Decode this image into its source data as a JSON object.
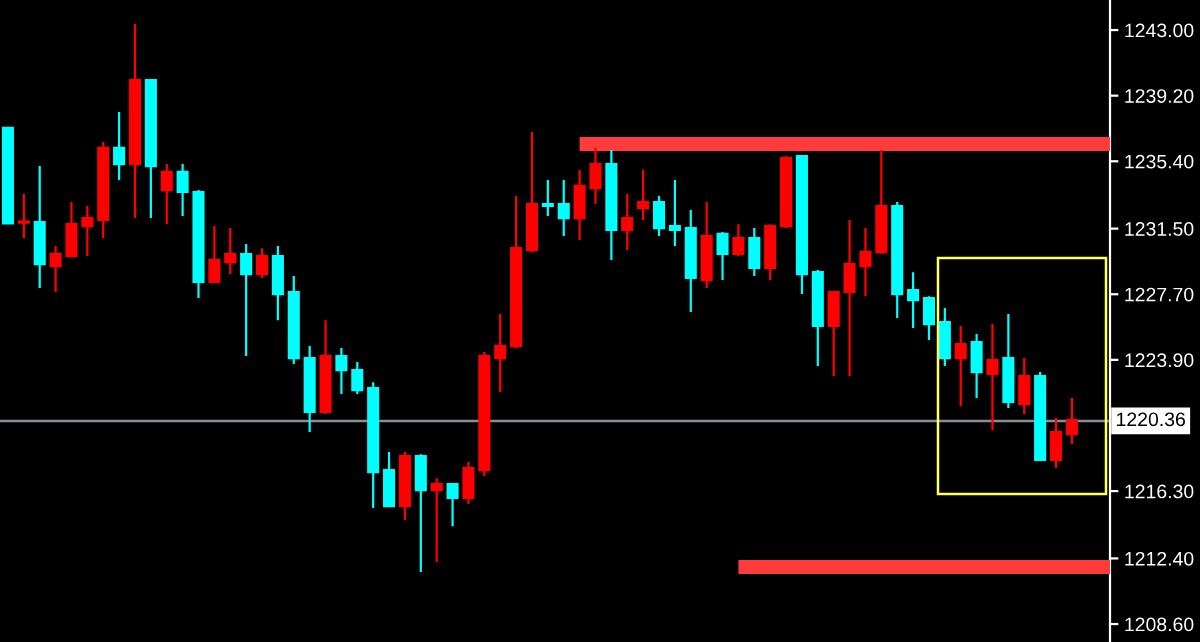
{
  "chart_data": {
    "type": "candlestick",
    "categories": [
      null,
      null,
      null,
      null,
      null,
      null,
      null,
      null,
      null,
      null,
      null,
      null,
      null,
      null,
      null,
      null,
      null,
      null,
      null,
      null,
      null,
      null,
      null,
      null,
      null,
      null,
      null,
      null,
      null,
      null,
      null,
      null,
      null,
      null,
      null,
      null,
      null,
      null,
      null,
      null,
      null,
      null,
      null,
      null,
      null,
      null,
      null,
      null,
      null,
      null,
      null,
      null,
      null,
      null,
      null,
      null,
      null,
      null,
      null,
      null,
      null,
      null,
      null,
      null,
      null,
      null,
      null,
      null
    ],
    "ylim": [
      1207.56,
      1244.74
    ],
    "yticks": [
      {
        "value": 1243.0,
        "label": "1243.00"
      },
      {
        "value": 1239.2,
        "label": "1239.20"
      },
      {
        "value": 1235.4,
        "label": "1235.40"
      },
      {
        "value": 1231.5,
        "label": "1231.50"
      },
      {
        "value": 1227.7,
        "label": "1227.70"
      },
      {
        "value": 1223.9,
        "label": "1223.90"
      },
      {
        "value": 1216.3,
        "label": "1216.30"
      },
      {
        "value": 1212.4,
        "label": "1212.40"
      },
      {
        "value": 1208.6,
        "label": "1208.60"
      }
    ],
    "tick_labels": "y",
    "grid": false,
    "legend": false,
    "ohlc": [
      [
        1237.33,
        1237.33,
        1231.8,
        1231.8
      ],
      [
        1231.84,
        1233.5,
        1230.95,
        1231.9
      ],
      [
        1231.88,
        1235.12,
        1228.06,
        1229.45
      ],
      [
        1229.33,
        1230.49,
        1227.83,
        1230.03
      ],
      [
        1229.91,
        1233.04,
        1229.91,
        1231.76
      ],
      [
        1231.65,
        1232.81,
        1229.91,
        1232.11
      ],
      [
        1232.0,
        1236.51,
        1230.95,
        1236.17
      ],
      [
        1236.17,
        1238.25,
        1234.31,
        1235.24
      ],
      [
        1235.24,
        1243.35,
        1232.11,
        1240.1
      ],
      [
        1240.1,
        1240.1,
        1232.11,
        1235.12
      ],
      [
        1233.73,
        1235.24,
        1231.76,
        1234.78
      ],
      [
        1234.78,
        1235.24,
        1232.23,
        1233.62
      ],
      [
        1233.62,
        1233.73,
        1227.48,
        1228.41
      ],
      [
        1228.41,
        1231.65,
        1228.41,
        1229.68
      ],
      [
        1229.56,
        1231.53,
        1228.87,
        1230.03
      ],
      [
        1230.03,
        1230.61,
        1224.12,
        1228.87
      ],
      [
        1228.87,
        1230.37,
        1228.64,
        1229.91
      ],
      [
        1229.91,
        1230.49,
        1226.2,
        1227.71
      ],
      [
        1227.83,
        1228.75,
        1223.66,
        1224.0
      ],
      [
        1224.0,
        1224.7,
        1219.72,
        1220.88
      ],
      [
        1220.88,
        1226.2,
        1220.76,
        1224.12
      ],
      [
        1224.12,
        1224.58,
        1221.92,
        1223.31
      ],
      [
        1223.31,
        1223.77,
        1221.92,
        1222.15
      ],
      [
        1222.27,
        1222.61,
        1215.32,
        1217.4
      ],
      [
        1217.52,
        1218.56,
        1215.43,
        1215.43
      ],
      [
        1215.43,
        1218.56,
        1214.62,
        1218.33
      ],
      [
        1218.33,
        1218.44,
        1211.61,
        1216.36
      ],
      [
        1216.36,
        1217.05,
        1212.19,
        1216.71
      ],
      [
        1216.71,
        1216.71,
        1214.27,
        1215.9
      ],
      [
        1215.9,
        1217.98,
        1215.55,
        1217.63
      ],
      [
        1217.52,
        1224.35,
        1217.17,
        1224.12
      ],
      [
        1224.0,
        1226.55,
        1222.03,
        1224.7
      ],
      [
        1224.7,
        1233.39,
        1224.58,
        1230.37
      ],
      [
        1230.26,
        1237.09,
        1230.14,
        1232.92
      ],
      [
        1232.92,
        1234.31,
        1232.23,
        1232.81
      ],
      [
        1232.92,
        1234.31,
        1231.07,
        1232.11
      ],
      [
        1232.11,
        1234.89,
        1230.84,
        1233.97
      ],
      [
        1233.85,
        1236.17,
        1232.92,
        1235.24
      ],
      [
        1235.24,
        1236.05,
        1229.68,
        1231.42
      ],
      [
        1231.42,
        1233.5,
        1230.26,
        1232.11
      ],
      [
        1232.69,
        1234.89,
        1232.0,
        1233.04
      ],
      [
        1233.04,
        1233.39,
        1231.07,
        1231.53
      ],
      [
        1231.65,
        1234.31,
        1230.49,
        1231.42
      ],
      [
        1231.53,
        1232.58,
        1226.67,
        1228.64
      ],
      [
        1228.52,
        1233.04,
        1228.06,
        1231.07
      ],
      [
        1231.19,
        1231.3,
        1228.52,
        1230.03
      ],
      [
        1230.03,
        1231.76,
        1229.91,
        1230.95
      ],
      [
        1230.95,
        1231.53,
        1228.75,
        1229.22
      ],
      [
        1229.22,
        1231.76,
        1228.52,
        1231.65
      ],
      [
        1231.65,
        1235.7,
        1231.53,
        1235.59
      ],
      [
        1235.7,
        1235.7,
        1227.71,
        1228.87
      ],
      [
        1228.98,
        1229.1,
        1223.54,
        1225.86
      ],
      [
        1225.86,
        1227.83,
        1222.96,
        1227.83
      ],
      [
        1227.83,
        1232.0,
        1222.96,
        1229.45
      ],
      [
        1229.33,
        1231.53,
        1227.59,
        1230.14
      ],
      [
        1230.14,
        1236.05,
        1230.03,
        1232.81
      ],
      [
        1232.81,
        1233.04,
        1226.32,
        1227.71
      ],
      [
        1227.94,
        1228.98,
        1225.74,
        1227.36
      ],
      [
        1227.48,
        1227.59,
        1225.05,
        1225.97
      ],
      [
        1226.09,
        1226.9,
        1223.54,
        1224.0
      ],
      [
        1224.0,
        1225.86,
        1221.22,
        1224.81
      ],
      [
        1224.93,
        1225.39,
        1221.69,
        1223.19
      ],
      [
        1223.08,
        1225.97,
        1219.83,
        1223.89
      ],
      [
        1224.0,
        1226.55,
        1221.11,
        1221.46
      ],
      [
        1221.34,
        1224.0,
        1220.76,
        1222.96
      ],
      [
        1222.96,
        1223.19,
        1218.1,
        1218.1
      ],
      [
        1218.1,
        1220.53,
        1217.63,
        1219.72
      ],
      [
        1219.6,
        1221.69,
        1219.02,
        1220.41
      ]
    ],
    "colors": [
      "#00ffff",
      "#ff0000",
      "#00ffff",
      "#ff0000",
      "#ff0000",
      "#ff0000",
      "#ff0000",
      "#00ffff",
      "#ff0000",
      "#00ffff",
      "#ff0000",
      "#00ffff",
      "#00ffff",
      "#ff0000",
      "#ff0000",
      "#00ffff",
      "#ff0000",
      "#00ffff",
      "#00ffff",
      "#00ffff",
      "#ff0000",
      "#00ffff",
      "#00ffff",
      "#00ffff",
      "#00ffff",
      "#ff0000",
      "#00ffff",
      "#ff0000",
      "#00ffff",
      "#ff0000",
      "#ff0000",
      "#ff0000",
      "#ff0000",
      "#ff0000",
      "#00ffff",
      "#00ffff",
      "#ff0000",
      "#ff0000",
      "#00ffff",
      "#ff0000",
      "#ff0000",
      "#00ffff",
      "#00ffff",
      "#00ffff",
      "#ff0000",
      "#00ffff",
      "#ff0000",
      "#00ffff",
      "#ff0000",
      "#ff0000",
      "#00ffff",
      "#00ffff",
      "#ff0000",
      "#ff0000",
      "#ff0000",
      "#ff0000",
      "#00ffff",
      "#00ffff",
      "#00ffff",
      "#00ffff",
      "#ff0000",
      "#00ffff",
      "#ff0000",
      "#00ffff",
      "#ff0000",
      "#00ffff",
      "#ff0000",
      "#ff0000"
    ],
    "series": [
      {
        "type": "line",
        "values": [
          null,
          null,
          null,
          null,
          null,
          null,
          null,
          null,
          null,
          null,
          null,
          null,
          null,
          null,
          null,
          null,
          null,
          null,
          null,
          null,
          null,
          null,
          null,
          null,
          null,
          null,
          null,
          null,
          null,
          null,
          null,
          null,
          null,
          null,
          null,
          null,
          1236.4,
          1236.4,
          1236.4,
          1236.4,
          1236.4,
          1236.4,
          1236.4,
          1236.4,
          1236.4,
          1236.4,
          1236.4,
          1236.4,
          1236.4,
          1236.4,
          1236.4,
          1236.4,
          1236.4,
          1236.4,
          1236.4,
          1236.4,
          1236.4,
          1236.4,
          1236.4,
          1236.4,
          1236.4,
          1236.4,
          1236.4,
          1236.4,
          1236.4,
          1236.4,
          1236.4,
          1236.4
        ],
        "color": "#ff3b3b"
      },
      {
        "type": "line",
        "values": [
          null,
          null,
          null,
          null,
          null,
          null,
          null,
          null,
          null,
          null,
          null,
          null,
          null,
          null,
          null,
          null,
          null,
          null,
          null,
          null,
          null,
          null,
          null,
          null,
          null,
          null,
          null,
          null,
          null,
          null,
          null,
          null,
          null,
          null,
          null,
          null,
          null,
          null,
          null,
          null,
          null,
          null,
          null,
          null,
          null,
          null,
          1211.9,
          1211.9,
          1211.9,
          1211.9,
          1211.9,
          1211.9,
          1211.9,
          1211.9,
          1211.9,
          1211.9,
          1211.9,
          1211.9,
          1211.9,
          1211.9,
          1211.9,
          1211.9,
          1211.9,
          1211.9,
          1211.9,
          1211.9,
          1211.9,
          1211.9
        ],
        "color": "#ff3b3b"
      }
    ],
    "ref_lines": [
      {
        "axis": "y",
        "value": 1220.36,
        "label": "1220.36",
        "color": "#8c8c99"
      }
    ]
  }
}
